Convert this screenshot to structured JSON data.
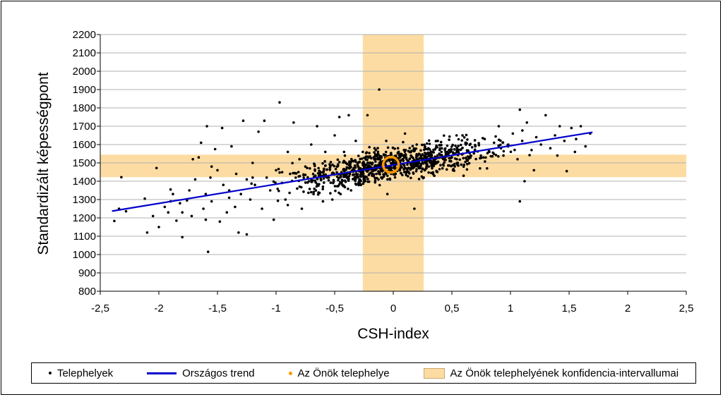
{
  "chart_data": {
    "type": "scatter",
    "xlabel": "CSH-index",
    "ylabel": "Standardizált képességpont",
    "xlim": [
      -2.5,
      2.5
    ],
    "ylim": [
      800,
      2200
    ],
    "x_ticks": [
      "-2,5",
      "-2",
      "-1,5",
      "-1",
      "-0,5",
      "0",
      "0,5",
      "1",
      "1,5",
      "2",
      "2,5"
    ],
    "y_ticks": [
      "800",
      "900",
      "1000",
      "1100",
      "1200",
      "1300",
      "1400",
      "1500",
      "1600",
      "1700",
      "1800",
      "1900",
      "2000",
      "2100",
      "2200"
    ],
    "grid": true,
    "legend_position": "bottom",
    "series": [
      {
        "name": "Telephelyek",
        "kind": "points",
        "color": "#000000"
      },
      {
        "name": "Országos trend",
        "kind": "line",
        "color": "#0000cc",
        "x": [
          -2.4,
          1.7
        ],
        "y": [
          1237,
          1667
        ]
      },
      {
        "name": "Az Önök telephelye",
        "kind": "point",
        "color": "#ff9900",
        "x": -0.02,
        "y": 1490
      },
      {
        "name": "Az Önök telephelyének konfidencia-intervallumai",
        "kind": "bands",
        "color": "#fddca3",
        "x_interval": [
          -0.26,
          0.26
        ],
        "y_interval": [
          1422,
          1545
        ]
      }
    ],
    "points": [
      [
        -2.38,
        1183
      ],
      [
        -2.34,
        1250
      ],
      [
        -2.32,
        1422
      ],
      [
        -2.28,
        1236
      ],
      [
        -2.12,
        1305
      ],
      [
        -2.1,
        1120
      ],
      [
        -2.05,
        1210
      ],
      [
        -2.02,
        1472
      ],
      [
        -2.0,
        1150
      ],
      [
        -1.95,
        1260
      ],
      [
        -1.92,
        1230
      ],
      [
        -1.9,
        1355
      ],
      [
        -1.88,
        1330
      ],
      [
        -1.85,
        1185
      ],
      [
        -1.82,
        1280
      ],
      [
        -1.8,
        1095
      ],
      [
        -1.76,
        1295
      ],
      [
        -1.74,
        1350
      ],
      [
        -1.72,
        1210
      ],
      [
        -1.71,
        1520
      ],
      [
        -1.69,
        1410
      ],
      [
        -1.66,
        1530
      ],
      [
        -1.64,
        1610
      ],
      [
        -1.62,
        1250
      ],
      [
        -1.6,
        1330
      ],
      [
        -1.59,
        1700
      ],
      [
        -1.58,
        1015
      ],
      [
        -1.56,
        1420
      ],
      [
        -1.55,
        1290
      ],
      [
        -1.52,
        1575
      ],
      [
        -1.5,
        1460
      ],
      [
        -1.48,
        1180
      ],
      [
        -1.46,
        1690
      ],
      [
        -1.45,
        1380
      ],
      [
        -1.42,
        1230
      ],
      [
        -1.4,
        1310
      ],
      [
        -1.38,
        1590
      ],
      [
        -1.35,
        1260
      ],
      [
        -1.34,
        1440
      ],
      [
        -1.32,
        1120
      ],
      [
        -1.3,
        1330
      ],
      [
        -1.28,
        1730
      ],
      [
        -1.25,
        1410
      ],
      [
        -1.22,
        1300
      ],
      [
        -1.2,
        1500
      ],
      [
        -1.18,
        1380
      ],
      [
        -1.15,
        1670
      ],
      [
        -1.12,
        1250
      ],
      [
        -1.1,
        1730
      ],
      [
        -1.08,
        1420
      ],
      [
        -1.05,
        1350
      ],
      [
        -1.02,
        1190
      ],
      [
        -1.0,
        1460
      ],
      [
        -0.97,
        1830
      ],
      [
        -0.95,
        1390
      ],
      [
        -0.92,
        1300
      ],
      [
        -0.9,
        1560
      ],
      [
        -0.88,
        1440
      ],
      [
        -0.85,
        1720
      ],
      [
        -0.82,
        1360
      ],
      [
        -0.8,
        1520
      ],
      [
        -0.78,
        1250
      ],
      [
        -0.75,
        1480
      ],
      [
        -0.72,
        1400
      ],
      [
        -0.7,
        1600
      ],
      [
        -0.68,
        1330
      ],
      [
        -0.65,
        1700
      ],
      [
        -0.62,
        1450
      ],
      [
        -0.6,
        1370
      ],
      [
        -0.58,
        1560
      ],
      [
        -0.55,
        1420
      ],
      [
        -0.52,
        1300
      ],
      [
        -0.5,
        1650
      ],
      [
        -0.48,
        1480
      ],
      [
        -0.46,
        1750
      ],
      [
        -0.44,
        1390
      ],
      [
        -0.42,
        1560
      ],
      [
        -0.4,
        1440
      ],
      [
        -0.38,
        1760
      ],
      [
        -0.36,
        1350
      ],
      [
        -0.34,
        1510
      ],
      [
        -0.32,
        1620
      ],
      [
        -0.3,
        1420
      ],
      [
        -0.28,
        1470
      ],
      [
        -0.26,
        1560
      ],
      [
        -0.24,
        1400
      ],
      [
        -0.22,
        1760
      ],
      [
        -0.2,
        1500
      ],
      [
        -0.18,
        1440
      ],
      [
        -0.16,
        1580
      ],
      [
        -0.14,
        1470
      ],
      [
        -0.12,
        1900
      ],
      [
        -0.1,
        1530
      ],
      [
        -0.08,
        1430
      ],
      [
        -0.06,
        1620
      ],
      [
        -0.04,
        1470
      ],
      [
        -0.02,
        1550
      ],
      [
        0.0,
        1500
      ],
      [
        0.02,
        1440
      ],
      [
        0.04,
        1580
      ],
      [
        0.06,
        1470
      ],
      [
        0.08,
        1520
      ],
      [
        0.1,
        1660
      ],
      [
        0.12,
        1450
      ],
      [
        0.14,
        1560
      ],
      [
        0.16,
        1500
      ],
      [
        0.18,
        1250
      ],
      [
        0.2,
        1600
      ],
      [
        0.22,
        1480
      ],
      [
        0.24,
        1540
      ],
      [
        0.26,
        1420
      ],
      [
        0.3,
        1580
      ],
      [
        0.34,
        1500
      ],
      [
        0.38,
        1620
      ],
      [
        0.42,
        1470
      ],
      [
        0.46,
        1560
      ],
      [
        0.5,
        1530
      ],
      [
        0.54,
        1650
      ],
      [
        0.58,
        1490
      ],
      [
        0.62,
        1600
      ],
      [
        0.66,
        1540
      ],
      [
        0.7,
        1590
      ],
      [
        0.74,
        1470
      ],
      [
        0.78,
        1630
      ],
      [
        0.82,
        1560
      ],
      [
        0.86,
        1610
      ],
      [
        0.9,
        1700
      ],
      [
        0.94,
        1540
      ],
      [
        0.98,
        1590
      ],
      [
        1.02,
        1660
      ],
      [
        1.06,
        1520
      ],
      [
        1.08,
        1290
      ],
      [
        1.1,
        1620
      ],
      [
        1.14,
        1720
      ],
      [
        1.18,
        1570
      ],
      [
        1.22,
        1640
      ],
      [
        1.26,
        1600
      ],
      [
        1.3,
        1760
      ],
      [
        1.34,
        1580
      ],
      [
        1.38,
        1650
      ],
      [
        1.42,
        1700
      ],
      [
        1.46,
        1620
      ],
      [
        1.48,
        1455
      ],
      [
        1.52,
        1690
      ],
      [
        1.56,
        1630
      ],
      [
        1.6,
        1700
      ],
      [
        1.64,
        1590
      ],
      [
        1.68,
        1660
      ],
      [
        1.08,
        1790
      ],
      [
        1.12,
        1400
      ],
      [
        -1.25,
        1110
      ],
      [
        -0.05,
        1330
      ],
      [
        -1.8,
        1230
      ],
      [
        -1.6,
        1190
      ],
      [
        -1.4,
        1350
      ],
      [
        -1.2,
        1420
      ],
      [
        -0.9,
        1270
      ],
      [
        -0.7,
        1340
      ],
      [
        -0.6,
        1290
      ],
      [
        -0.45,
        1330
      ],
      [
        0.35,
        1430
      ],
      [
        0.6,
        1430
      ],
      [
        0.8,
        1470
      ],
      [
        1.2,
        1460
      ],
      [
        1.4,
        1540
      ],
      [
        1.55,
        1560
      ],
      [
        -1.9,
        1290
      ],
      [
        -1.55,
        1480
      ]
    ],
    "legend": [
      {
        "label": "Telephelyek",
        "symbol": "dot"
      },
      {
        "label": "Országos trend",
        "symbol": "line"
      },
      {
        "label": "Az Önök telephelye",
        "symbol": "orange-dot"
      },
      {
        "label": "Az Önök telephelyének konfidencia-intervallumai",
        "symbol": "band"
      }
    ]
  }
}
